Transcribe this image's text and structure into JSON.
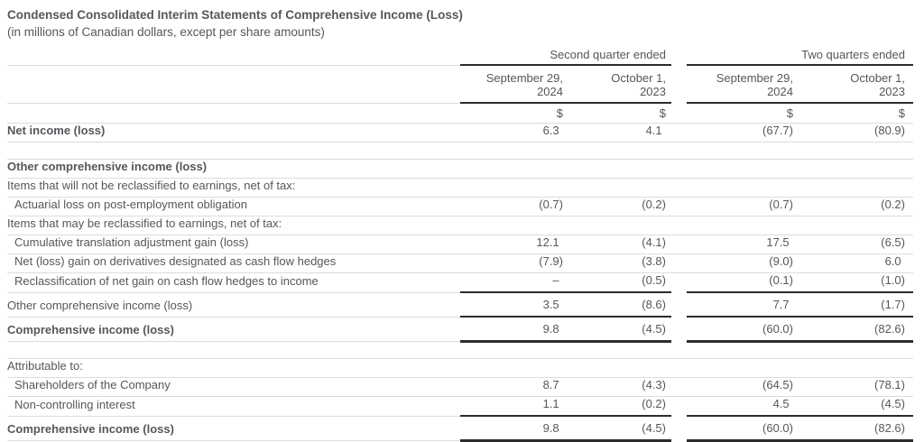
{
  "document": {
    "title": "Condensed Consolidated Interim Statements of Comprehensive Income (Loss)",
    "subtitle": "(in millions of Canadian dollars, except per share amounts)"
  },
  "colors": {
    "text": "#55575b",
    "line_light": "#dcdcdd",
    "line_dark": "#2c2c2e"
  },
  "table": {
    "column_groups": [
      {
        "label": "Second quarter ended",
        "columns": [
          [
            "September 29,",
            "2024"
          ],
          [
            "October 1,",
            "2023"
          ]
        ]
      },
      {
        "label": "Two quarters ended",
        "columns": [
          [
            "September 29,",
            "2024"
          ],
          [
            "October 1,",
            "2023"
          ]
        ]
      }
    ],
    "currency_symbol": "$",
    "rows": [
      {
        "label": "Net income (loss)",
        "bold": true,
        "values": [
          "6.3",
          "4.1",
          "(67.7)",
          "(80.9)"
        ],
        "divider": "light"
      },
      {
        "spacer": true,
        "divider": "light"
      },
      {
        "label": "Other comprehensive income (loss)",
        "bold": true,
        "values": [
          "",
          "",
          "",
          ""
        ],
        "divider": "light"
      },
      {
        "label": "Items that will not be reclassified to earnings, net of tax:",
        "values": [
          "",
          "",
          "",
          ""
        ],
        "divider": "light"
      },
      {
        "label": "Actuarial loss on post-employment obligation",
        "indent": true,
        "values": [
          "(0.7)",
          "(0.2)",
          "(0.7)",
          "(0.2)"
        ],
        "divider": "light"
      },
      {
        "label": "Items that may be reclassified to earnings, net of tax:",
        "values": [
          "",
          "",
          "",
          ""
        ],
        "divider": "light"
      },
      {
        "label": "Cumulative translation adjustment gain (loss)",
        "indent": true,
        "values": [
          "12.1",
          "(4.1)",
          "17.5",
          "(6.5)"
        ],
        "divider": "light"
      },
      {
        "label": "Net (loss) gain on derivatives designated as cash flow hedges",
        "indent": true,
        "values": [
          "(7.9)",
          "(3.8)",
          "(9.0)",
          "6.0"
        ],
        "divider": "light"
      },
      {
        "label": "Reclassification of net gain on cash flow hedges to income",
        "indent": true,
        "values": [
          "–",
          "(0.5)",
          "(0.1)",
          "(1.0)"
        ],
        "divider": "dark"
      },
      {
        "label": "Other comprehensive income (loss)",
        "values": [
          "3.5",
          "(8.6)",
          "7.7",
          "(1.7)"
        ],
        "divider": "dark"
      },
      {
        "label": "Comprehensive income (loss)",
        "bold": true,
        "values": [
          "9.8",
          "(4.5)",
          "(60.0)",
          "(82.6)"
        ],
        "divider": "thick"
      },
      {
        "spacer": true,
        "divider": "light"
      },
      {
        "label": "Attributable to:",
        "values": [
          "",
          "",
          "",
          ""
        ],
        "divider": "light"
      },
      {
        "label": "Shareholders of the Company",
        "indent": true,
        "values": [
          "8.7",
          "(4.3)",
          "(64.5)",
          "(78.1)"
        ],
        "divider": "light"
      },
      {
        "label": "Non-controlling interest",
        "indent": true,
        "values": [
          "1.1",
          "(0.2)",
          "4.5",
          "(4.5)"
        ],
        "divider": "dark"
      },
      {
        "label": "Comprehensive income (loss)",
        "bold": true,
        "values": [
          "9.8",
          "(4.5)",
          "(60.0)",
          "(82.6)"
        ],
        "divider": "thick"
      }
    ]
  }
}
